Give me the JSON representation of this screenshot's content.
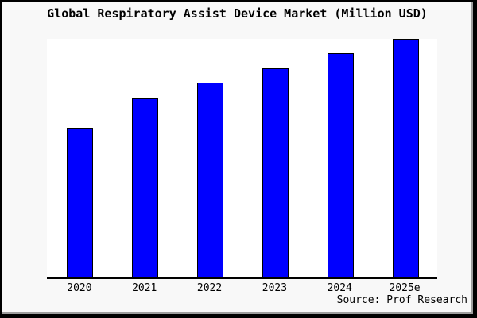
{
  "window": {
    "background": "#f8f8f8",
    "border_color": "#000000"
  },
  "chart_data": {
    "type": "bar",
    "title": "Global Respiratory Assist Device Market (Million USD)",
    "categories": [
      "2020",
      "2021",
      "2022",
      "2023",
      "2024",
      "2025e"
    ],
    "values": [
      62.7,
      75.3,
      81.7,
      87.7,
      94,
      100
    ],
    "values_note": "No y-axis, gridlines or data labels are visible; values are relative bar heights with the 2025e bar = 100.",
    "xlabel": "",
    "ylabel": "",
    "ylim_relative": [
      0,
      100
    ],
    "grid": false,
    "legend": false,
    "bar_color": "#0000ff",
    "bar_border_color": "#000000",
    "plot_background": "#ffffff",
    "source": "Source: Prof Research"
  }
}
